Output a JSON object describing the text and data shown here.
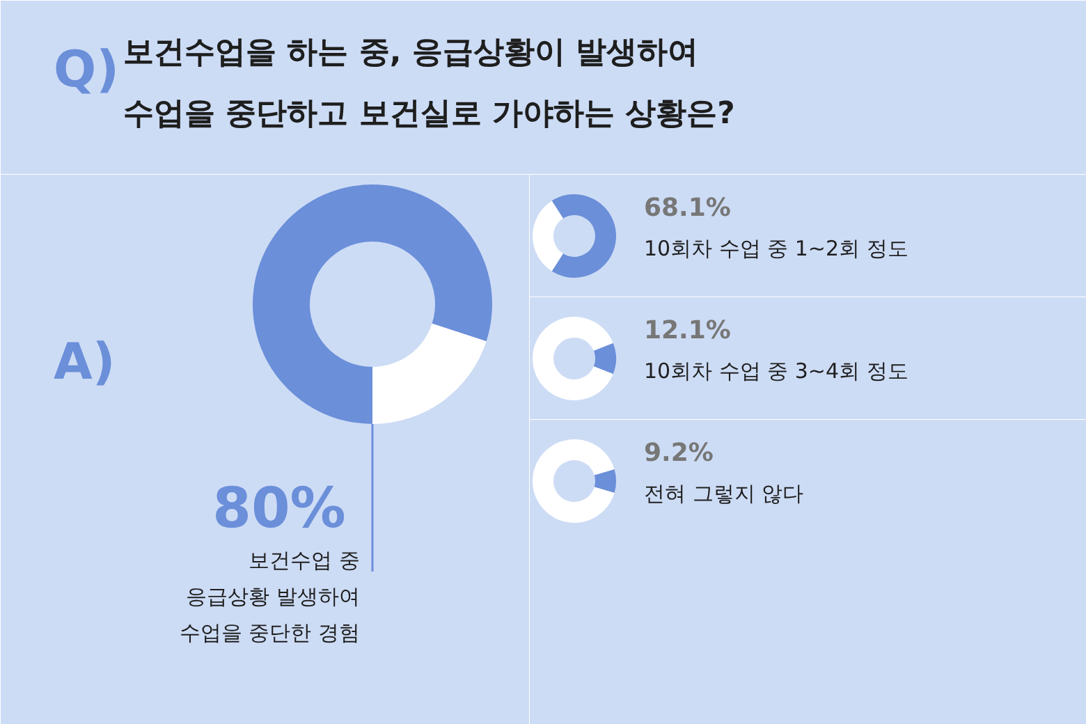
{
  "chart_data": [
    {
      "type": "donut",
      "title": "보건수업을 하는 중, 응급상황이 발생하여\n수업을 중단하고 보건실로 가야하는 상황은?",
      "annotations": [
        "Q)",
        "A)"
      ],
      "categories": [
        "보건수업 중\n응급상황 발생하여\n수업을 중단한 경험",
        null
      ],
      "values": [
        80,
        20
      ],
      "colors": [
        "#6b8fd9",
        "#ffffff"
      ],
      "value_labels": [
        "80%",
        null
      ]
    },
    {
      "type": "donut",
      "categories": [
        "10회차 수업 중 1~2회 정도",
        null
      ],
      "values": [
        68.1,
        31.9
      ],
      "colors": [
        "#6b8fd9",
        "#ffffff"
      ],
      "value_labels": [
        "68.1%",
        null
      ]
    },
    {
      "type": "donut",
      "categories": [
        "10회차 수업 중 3~4회 정도",
        null
      ],
      "values": [
        12.1,
        87.9
      ],
      "colors": [
        "#6b8fd9",
        "#ffffff"
      ],
      "value_labels": [
        "12.1%",
        null
      ]
    },
    {
      "type": "donut",
      "categories": [
        "전혀 그렇지 않다",
        null
      ],
      "values": [
        9.2,
        90.8
      ],
      "colors": [
        "#6b8fd9",
        "#ffffff"
      ],
      "value_labels": [
        "9.2%",
        null
      ]
    }
  ]
}
